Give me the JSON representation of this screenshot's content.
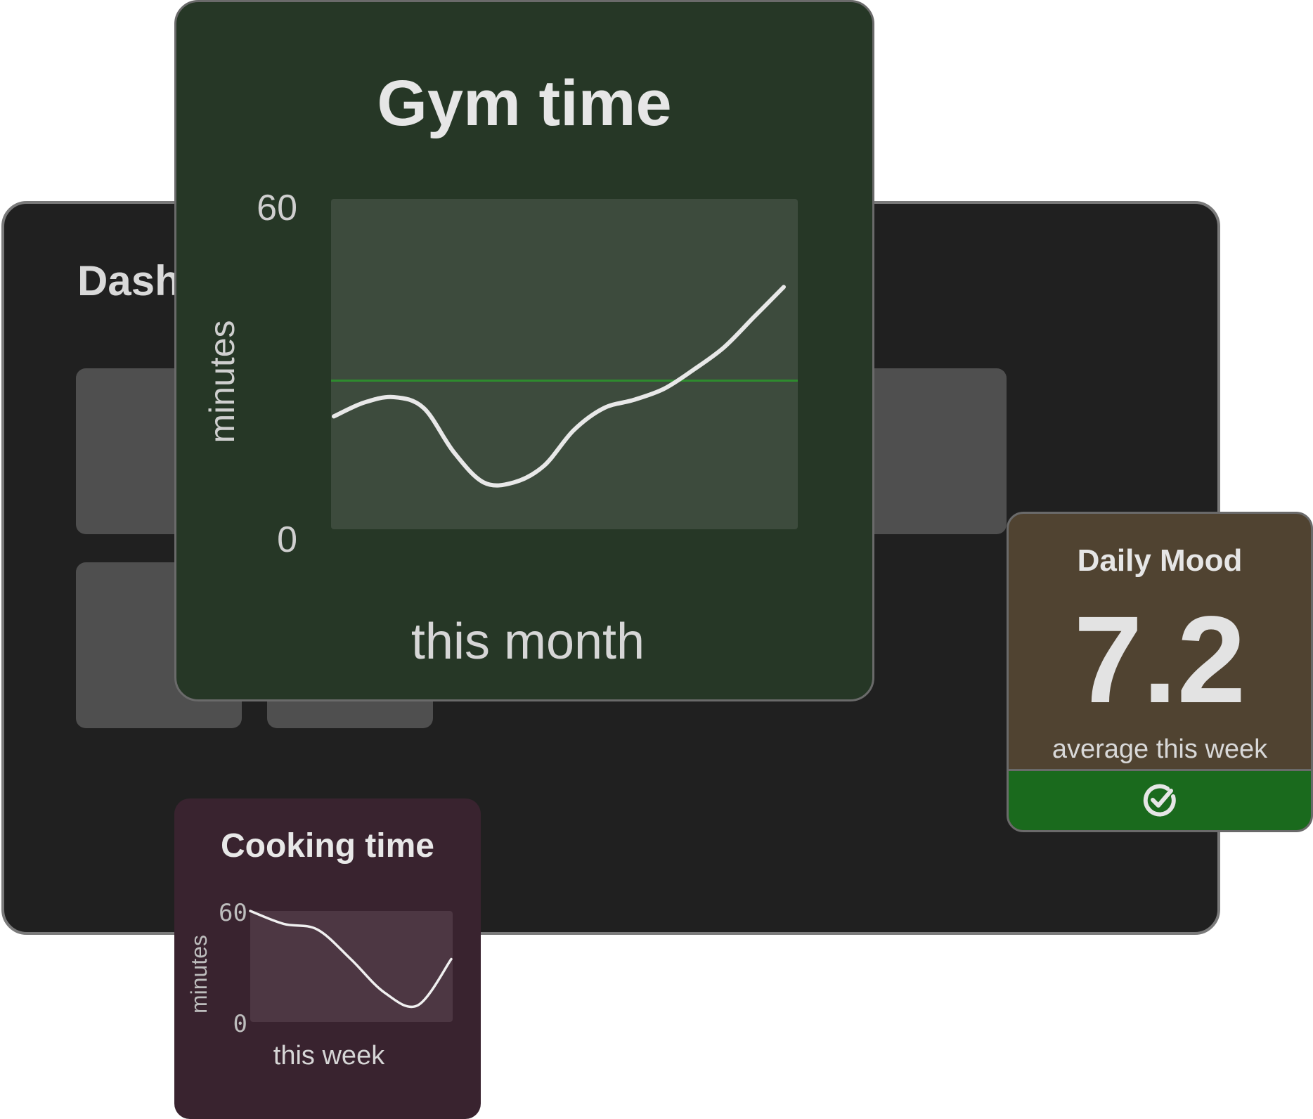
{
  "dashboard": {
    "title": "Dashboard"
  },
  "gym_card": {
    "title": "Gym time",
    "y_label": "minutes",
    "x_label": "this month",
    "y_max_label": "60",
    "y_min_label": "0"
  },
  "mood_card": {
    "title": "Daily Mood",
    "value": "7.2",
    "caption": "average this week",
    "status_icon": "check-circle-icon"
  },
  "cooking_card": {
    "title": "Cooking time",
    "y_label": "minutes",
    "x_label": "this week",
    "y_max_label": "60",
    "y_min_label": "0"
  },
  "colors": {
    "gym_card_bg": "#263726",
    "gym_plot_bg": "#3d4b3d",
    "gym_reference_line": "#2e8b2e",
    "mood_card_bg": "#504331",
    "mood_footer_bg": "#1a6a1d",
    "cooking_card_bg": "#39232f",
    "cooking_plot_bg": "#4d3743"
  },
  "chart_data": [
    {
      "type": "line",
      "title": "Gym time",
      "xlabel": "this month",
      "ylabel": "minutes",
      "ylim": [
        0,
        60
      ],
      "x": [
        0,
        2,
        4,
        6,
        8,
        10,
        12,
        14,
        16,
        18,
        20,
        22,
        24,
        26,
        28,
        30
      ],
      "series": [
        {
          "values": [
            20.5,
            23,
            24,
            22,
            14,
            8.5,
            8.5,
            11.5,
            18,
            22,
            23.5,
            25.5,
            29,
            33,
            38.5,
            44
          ]
        }
      ],
      "reference_line": 27
    },
    {
      "type": "line",
      "title": "Cooking time",
      "xlabel": "this week",
      "ylabel": "minutes",
      "ylim": [
        0,
        60
      ],
      "x": [
        0,
        1,
        2,
        3,
        4,
        5,
        6
      ],
      "series": [
        {
          "values": [
            60,
            53,
            50,
            34,
            16,
            9,
            34
          ]
        }
      ]
    }
  ]
}
